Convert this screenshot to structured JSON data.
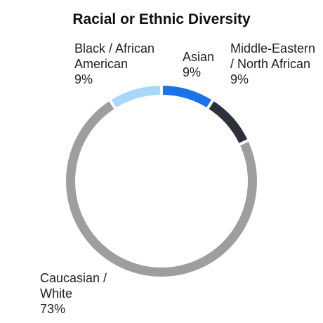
{
  "chart_data": {
    "type": "donut",
    "title": "Racial or Ethnic Diversity",
    "categories": [
      "Asian",
      "Middle-Eastern / North African",
      "Caucasian / White",
      "Black / African American"
    ],
    "values": [
      9,
      9,
      73,
      9
    ],
    "value_labels": [
      "9%",
      "9%",
      "73%",
      "9%"
    ],
    "colors": [
      "#1a73e8",
      "#2d3139",
      "#9e9e9e",
      "#a8d8f8"
    ]
  }
}
